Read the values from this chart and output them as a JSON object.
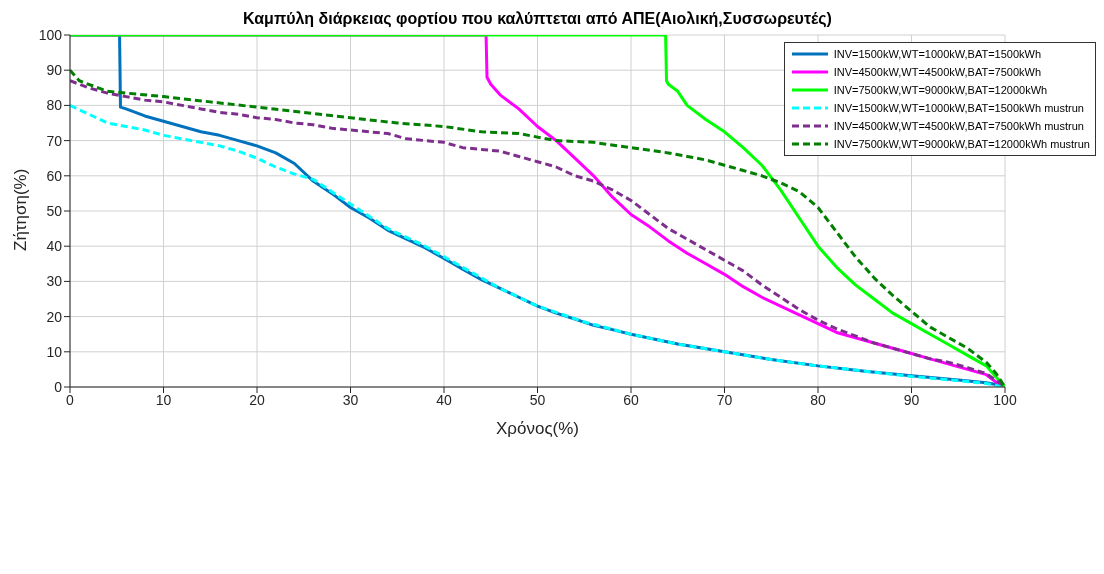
{
  "chart_data": {
    "type": "line",
    "title": "Καμπύλη διάρκειας φορτίου που καλύπτεται από ΑΠΕ(Αιολική,Συσσωρευτές)",
    "xlabel": "Χρόνος(%)",
    "ylabel": "Ζήτηση(%)",
    "xlim": [
      0,
      100
    ],
    "xticks": [
      0,
      10,
      20,
      30,
      40,
      50,
      60,
      70,
      80,
      90,
      100
    ],
    "ylim": [
      0,
      100
    ],
    "yticks": [
      0,
      10,
      20,
      30,
      40,
      50,
      60,
      70,
      80,
      90,
      100
    ],
    "grid": true,
    "legend": "top right",
    "series": [
      {
        "name": "INV=1500kW,WT=1000kW,BAT=1500kWh",
        "color": "#0072bd",
        "line_style": "solid",
        "x": [
          0,
          5.3,
          5.4,
          6,
          8,
          10,
          12,
          14,
          16,
          18,
          20,
          22,
          24,
          26,
          28,
          30,
          32,
          34,
          36,
          38,
          40,
          42,
          44,
          46,
          48,
          50,
          52,
          54,
          56,
          58,
          60,
          65,
          70,
          75,
          80,
          85,
          90,
          95,
          98,
          99.5,
          100
        ],
        "values": [
          100,
          100,
          79.5,
          79,
          77,
          75.5,
          74,
          72.5,
          71.5,
          70,
          68.5,
          66.5,
          63.5,
          58.5,
          55,
          51,
          48,
          44.5,
          42,
          39.5,
          36.5,
          33.5,
          30.5,
          28,
          25.5,
          23,
          21,
          19.3,
          17.5,
          16.3,
          15,
          12.2,
          10,
          7.8,
          6,
          4.5,
          3.2,
          2,
          1.2,
          0.5,
          0
        ]
      },
      {
        "name": "INV=4500kW,WT=4500kW,BAT=7500kWh",
        "color": "#ff00ff",
        "line_style": "solid",
        "x": [
          0,
          44.5,
          44.6,
          45,
          46,
          48,
          50,
          52,
          54,
          56,
          58,
          60,
          62,
          64,
          66,
          68,
          70,
          72,
          74,
          76,
          78,
          80,
          82,
          84,
          86,
          88,
          90,
          92,
          94,
          96,
          98,
          99,
          100
        ],
        "values": [
          100,
          100,
          88,
          86,
          83,
          79,
          74,
          70,
          65,
          60,
          54,
          49,
          45.5,
          41.5,
          38,
          35,
          32,
          28.5,
          25.5,
          23,
          20.5,
          18,
          15.5,
          14,
          12.5,
          11,
          9.5,
          8,
          6.5,
          5,
          3.5,
          1.5,
          0
        ]
      },
      {
        "name": "INV=7500kW,WT=9000kW,BAT=12000kWh",
        "color": "#00ff00",
        "line_style": "solid",
        "x": [
          0,
          63.7,
          63.8,
          64,
          65,
          66,
          68,
          70,
          72,
          74,
          76,
          78,
          80,
          82,
          84,
          86,
          88,
          90,
          92,
          94,
          96,
          98,
          99,
          100
        ],
        "values": [
          100,
          100,
          87,
          86,
          84,
          80,
          76,
          72.5,
          68,
          63,
          56,
          48,
          40,
          34,
          29,
          25,
          21,
          18,
          15,
          12,
          9,
          6,
          3,
          0
        ]
      },
      {
        "name": "INV=1500kW,WT=1000kW,BAT=1500kWh mustrun",
        "color": "#00ffff",
        "line_style": "dashed",
        "x": [
          0,
          2,
          4,
          6,
          8,
          10,
          12,
          14,
          16,
          18,
          20,
          22,
          24,
          26,
          28,
          30,
          32,
          34,
          36,
          38,
          40,
          42,
          44,
          46,
          48,
          50,
          55,
          60,
          65,
          70,
          75,
          80,
          85,
          90,
          95,
          98,
          100
        ],
        "values": [
          80,
          77.5,
          75,
          74,
          73,
          71.5,
          70.5,
          69.5,
          68.5,
          67,
          65,
          62.5,
          60.5,
          59,
          55.5,
          52,
          48.5,
          45,
          42.5,
          40,
          37,
          34,
          31,
          28,
          25.5,
          23,
          18.5,
          15,
          12.2,
          10,
          7.8,
          6,
          4.5,
          3,
          1.8,
          1,
          0
        ]
      },
      {
        "name": "INV=4500kW,WT=4500kW,BAT=7500kWh mustrun",
        "color": "#7e2f8e",
        "line_style": "dashed",
        "x": [
          0,
          2,
          4,
          6,
          8,
          10,
          12,
          14,
          16,
          18,
          20,
          22,
          24,
          26,
          28,
          30,
          32,
          34,
          36,
          38,
          40,
          42,
          44,
          46,
          48,
          50,
          52,
          54,
          56,
          58,
          60,
          62,
          64,
          66,
          68,
          70,
          72,
          74,
          76,
          78,
          80,
          82,
          84,
          86,
          88,
          90,
          92,
          94,
          96,
          98,
          99,
          100
        ],
        "values": [
          87,
          85,
          83.5,
          82.5,
          81.5,
          81,
          80,
          79,
          78,
          77.5,
          76.5,
          76,
          75,
          74.5,
          73.5,
          73,
          72.5,
          72,
          70.5,
          70,
          69.5,
          68,
          67.5,
          67,
          65.5,
          64,
          62.5,
          60,
          58.5,
          56,
          53,
          49,
          45,
          42,
          39,
          36,
          33,
          29,
          25.5,
          22,
          19,
          16.5,
          14.5,
          12.5,
          11,
          9.5,
          8,
          7,
          5.5,
          3.8,
          2,
          0
        ]
      },
      {
        "name": "INV=7500kW,WT=9000kW,BAT=12000kWh mustrun",
        "color": "#007f00",
        "line_style": "dashed",
        "x": [
          0,
          1,
          2,
          4,
          6,
          10,
          15,
          20,
          25,
          30,
          35,
          40,
          44,
          48,
          52,
          56,
          60,
          64,
          66,
          68,
          70,
          72,
          74,
          76,
          78,
          80,
          82,
          84,
          86,
          88,
          90,
          92,
          94,
          96,
          98,
          99,
          100
        ],
        "values": [
          90,
          87,
          86,
          84,
          83.5,
          82.5,
          81,
          79.5,
          78,
          76.5,
          75,
          74,
          72.5,
          72,
          70,
          69.5,
          68,
          66.5,
          65.5,
          64.5,
          63,
          61.5,
          60,
          58,
          55.5,
          51,
          44,
          37,
          31,
          26,
          21.5,
          17,
          14,
          11,
          7,
          4,
          0
        ]
      }
    ]
  }
}
